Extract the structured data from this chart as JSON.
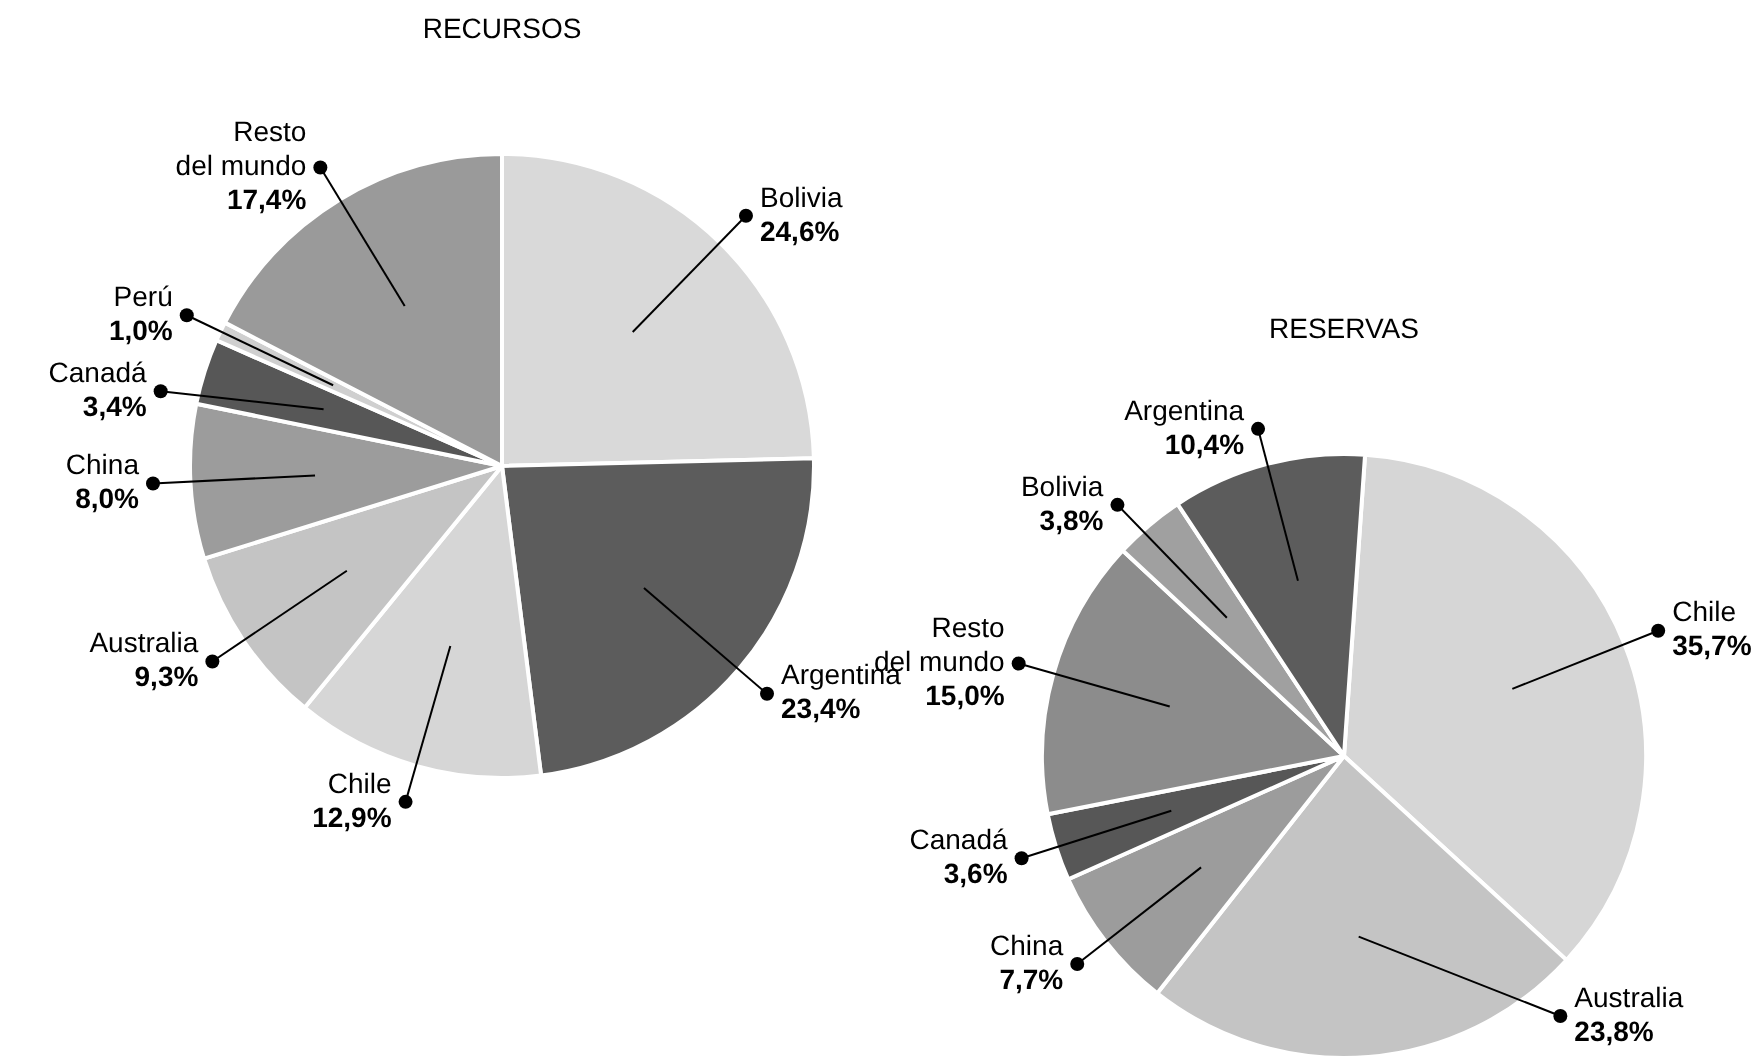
{
  "chart_data": [
    {
      "type": "pie",
      "title": "RECURSOS",
      "categories": [
        "Bolivia",
        "Argentina",
        "Chile",
        "Australia",
        "China",
        "Canadá",
        "Perú",
        "Resto del mundo"
      ],
      "values": [
        24.6,
        23.4,
        12.9,
        9.3,
        8.0,
        3.4,
        1.0,
        17.4
      ],
      "colors": [
        "#d9d9d9",
        "#5c5c5c",
        "#d6d6d6",
        "#c4c4c4",
        "#9c9c9c",
        "#575757",
        "#cfcfcf",
        "#9a9a9a"
      ],
      "value_labels": [
        "24,6%",
        "23,4%",
        "12,9%",
        "9,3%",
        "8,0%",
        "3,4%",
        "1,0%",
        "17,4%"
      ]
    },
    {
      "type": "pie",
      "title": "RESERVAS",
      "categories": [
        "Chile",
        "Australia",
        "China",
        "Canadá",
        "Resto del mundo",
        "Bolivia",
        "Argentina"
      ],
      "values": [
        35.7,
        23.8,
        7.7,
        3.6,
        15.0,
        3.8,
        10.4
      ],
      "colors": [
        "#d6d6d6",
        "#c4c4c4",
        "#9c9c9c",
        "#575757",
        "#8c8c8c",
        "#a0a0a0",
        "#5c5c5c"
      ],
      "value_labels": [
        "35,7%",
        "23,8%",
        "7,7%",
        "3,6%",
        "15,0%",
        "3,8%",
        "10,4%"
      ]
    }
  ]
}
